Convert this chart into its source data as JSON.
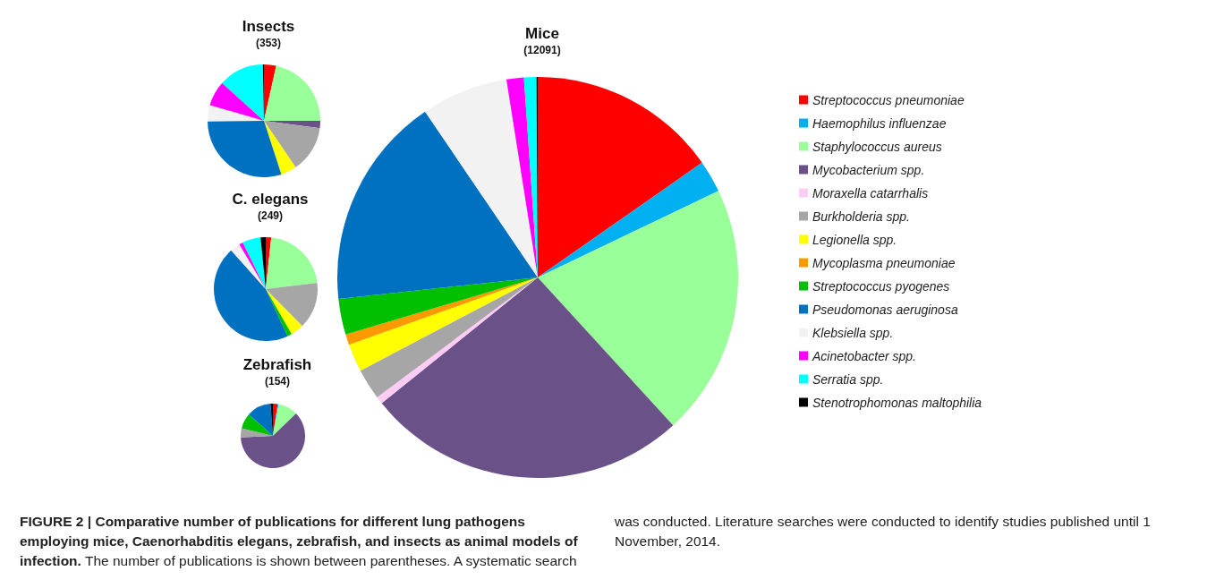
{
  "chart_data": [
    {
      "type": "pie",
      "title": "Insects",
      "subtitle": "(353)",
      "legend": false,
      "categories": [
        null,
        null,
        null,
        null,
        null,
        null,
        null,
        null,
        null,
        null
      ],
      "values": [
        3.5,
        21.5,
        2.1,
        13.4,
        4.5,
        29.9,
        4.6,
        7.2,
        13.0,
        0.3
      ],
      "colors": [
        "#ff0000",
        "#99ff99",
        "#6a5188",
        "#a6a6a6",
        "#ffff00",
        "#0070c0",
        "#f2f2f2",
        "#ff00ff",
        "#00ffff",
        "#000000"
      ]
    },
    {
      "type": "pie",
      "title": "C. elegans",
      "subtitle": "(249)",
      "legend": false,
      "categories": [
        null,
        null,
        null,
        null,
        null,
        null,
        null,
        null,
        null,
        null
      ],
      "values": [
        1.7,
        21.4,
        14.5,
        4.1,
        1.4,
        45.3,
        3.1,
        1.2,
        5.7,
        1.6
      ],
      "colors": [
        "#ff0000",
        "#99ff99",
        "#a6a6a6",
        "#ffff00",
        "#00c000",
        "#0070c0",
        "#f2f2f2",
        "#ff00ff",
        "#00ffff",
        "#000000"
      ]
    },
    {
      "type": "pie",
      "title": "Zebrafish",
      "subtitle": "(154)",
      "legend": false,
      "categories": [
        null,
        null,
        null,
        null,
        null,
        null,
        null,
        null
      ],
      "values": [
        2.4,
        0.5,
        9.9,
        61.4,
        4.6,
        7.8,
        12.2,
        1.2
      ],
      "colors": [
        "#ff0000",
        "#00b0f0",
        "#99ff99",
        "#6a5188",
        "#a6a6a6",
        "#00c000",
        "#0070c0",
        "#000000"
      ]
    },
    {
      "type": "pie",
      "title": "Mice",
      "subtitle": "(12091)",
      "legend": "right",
      "categories": [
        "Streptococcus pneumoniae",
        "Haemophilus influenzae",
        "Staphylococcus aureus",
        "Mycobacterium spp.",
        "Moraxella catarrhalis",
        "Burkholderia spp.",
        "Legionella spp.",
        "Mycoplasma pneumoniae",
        "Streptococcus pyogenes",
        "Pseudomonas aeruginosa",
        "Klebsiella spp.",
        "Acinetobacter spp.",
        "Serratia spp.",
        "Stenotrophomonas maltophilia"
      ],
      "values": [
        15.3,
        2.6,
        20.3,
        26.0,
        0.6,
        2.5,
        2.25,
        0.85,
        2.9,
        17.2,
        7.0,
        1.4,
        1.0,
        0.1
      ],
      "colors": [
        "#ff0000",
        "#00b0f0",
        "#99ff99",
        "#6a5188",
        "#ffccf5",
        "#a6a6a6",
        "#ffff00",
        "#ff9900",
        "#00c000",
        "#0070c0",
        "#f2f2f2",
        "#ff00ff",
        "#00ffff",
        "#000000"
      ],
      "annotations": [
        "FIGURE 2 | Comparative number of publications for different lung pathogens employing mice, Caenorhabditis elegans, zebrafish, and insects as animal models of infection.",
        "The number of publications is shown between parentheses. A systematic search was conducted. Literature searches were conducted to identify studies published until 1 November, 2014."
      ]
    }
  ]
}
